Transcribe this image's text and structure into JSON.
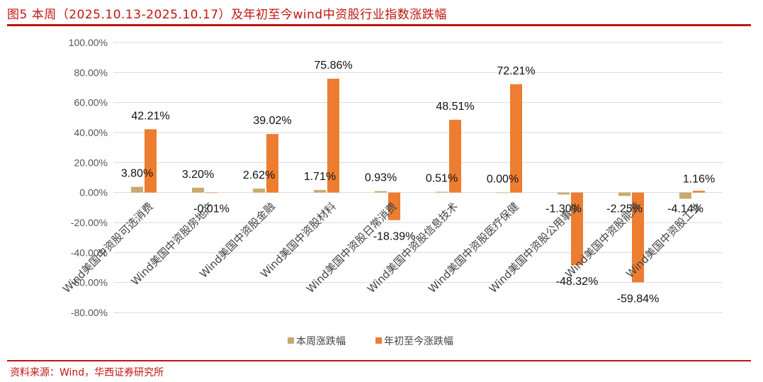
{
  "header": {
    "title": "图5   本周（2025.10.13-2025.10.17）及年初至今wind中资股行业指数涨跌幅"
  },
  "footer": {
    "source": "资料来源：Wind，华西证券研究所"
  },
  "colors": {
    "weekly": "#c9a96e",
    "ytd": "#ed7d31",
    "accent": "#c0150f"
  },
  "chart_data": {
    "type": "bar",
    "title": "",
    "xlabel": "",
    "ylabel": "",
    "ylim": [
      -80,
      100
    ],
    "yticks": [
      100,
      80,
      60,
      40,
      20,
      0,
      -20,
      -40,
      -60,
      -80
    ],
    "ytick_labels": [
      "100.00%",
      "80.00%",
      "60.00%",
      "40.00%",
      "20.00%",
      "0.00%",
      "-20.00%",
      "-40.00%",
      "-60.00%",
      "-80.00%"
    ],
    "grid": true,
    "legend_position": "bottom",
    "categories": [
      "Wind美国中资股可选消费",
      "Wind美国中资股房地产",
      "Wind美国中资股金融",
      "Wind美国中资股材料",
      "Wind美国中资股日常消费",
      "Wind美国中资股信息技术",
      "Wind美国中资股医疗保健",
      "Wind美国中资股公用事业",
      "Wind美国中资股能源",
      "Wind美国中资股工业"
    ],
    "series": [
      {
        "name": "本周涨跌幅",
        "values": [
          3.8,
          3.2,
          2.62,
          1.71,
          0.93,
          0.51,
          0.0,
          -1.3,
          -2.25,
          -4.14
        ],
        "labels": [
          "3.80%",
          "3.20%",
          "2.62%",
          "1.71%",
          "0.93%",
          "0.51%",
          "0.00%",
          "-1.30%",
          "-2.25%",
          "-4.14%"
        ]
      },
      {
        "name": "年初至今涨跌幅",
        "values": [
          42.21,
          -0.01,
          39.02,
          75.86,
          -18.39,
          48.51,
          72.21,
          -48.32,
          -59.84,
          1.16
        ],
        "labels": [
          "42.21%",
          "-0.01%",
          "39.02%",
          "75.86%",
          "-18.39%",
          "48.51%",
          "72.21%",
          "-48.32%",
          "-59.84%",
          "1.16%"
        ]
      }
    ]
  }
}
